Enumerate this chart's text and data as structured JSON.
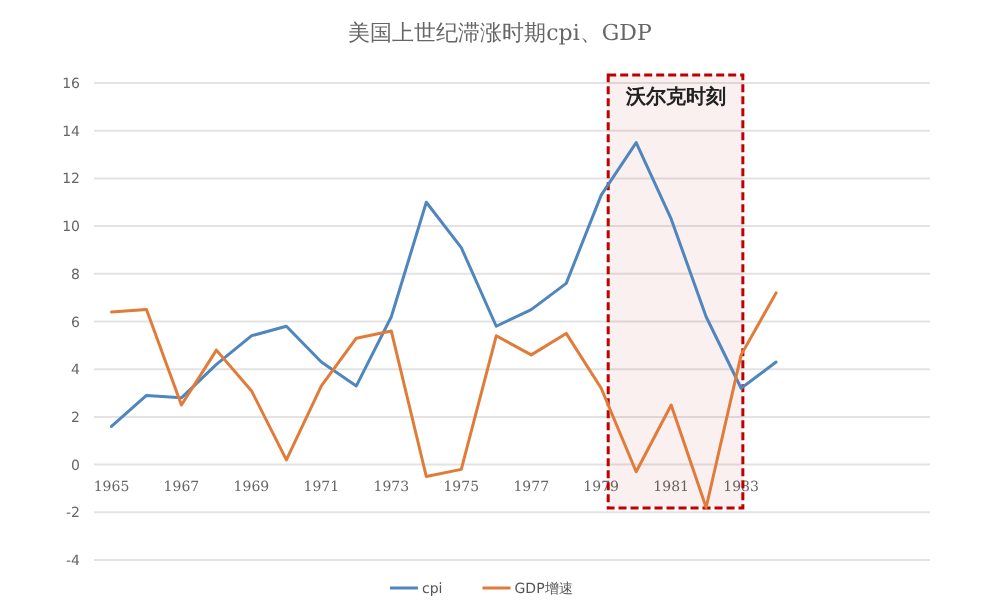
{
  "chart_data": {
    "type": "line",
    "title": "美国上世纪滞涨时期cpi、GDP",
    "x": [
      1965,
      1966,
      1967,
      1968,
      1969,
      1970,
      1971,
      1972,
      1973,
      1974,
      1975,
      1976,
      1977,
      1978,
      1979,
      1980,
      1981,
      1982,
      1983,
      1984
    ],
    "series": [
      {
        "name": "cpi",
        "color": "#4e86bd",
        "values": [
          1.6,
          2.9,
          2.8,
          4.2,
          5.4,
          5.8,
          4.3,
          3.3,
          6.2,
          11.0,
          9.1,
          5.8,
          6.5,
          7.6,
          11.3,
          13.5,
          10.3,
          6.2,
          3.2,
          4.3
        ]
      },
      {
        "name": "GDP增速",
        "color": "#e07b39",
        "values": [
          6.4,
          6.5,
          2.5,
          4.8,
          3.1,
          0.2,
          3.3,
          5.3,
          5.6,
          -0.5,
          -0.2,
          5.4,
          4.6,
          5.5,
          3.2,
          -0.3,
          2.5,
          -1.8,
          4.6,
          7.2
        ]
      }
    ],
    "xlim": [
      1964.5,
      1988.4
    ],
    "xticks": [
      1965,
      1967,
      1969,
      1971,
      1973,
      1975,
      1977,
      1979,
      1981,
      1983
    ],
    "ylim": [
      -4,
      16
    ],
    "yticks": [
      -4,
      -2,
      0,
      2,
      4,
      6,
      8,
      10,
      12,
      14,
      16
    ],
    "grid": "y",
    "legend": "bottom",
    "marker": "none",
    "line_style": "solid",
    "bands": [
      {
        "axis": "x",
        "from": 1979.2,
        "to": 1983.05,
        "label": "沃尔克时刻",
        "color": "#c00000"
      }
    ]
  }
}
